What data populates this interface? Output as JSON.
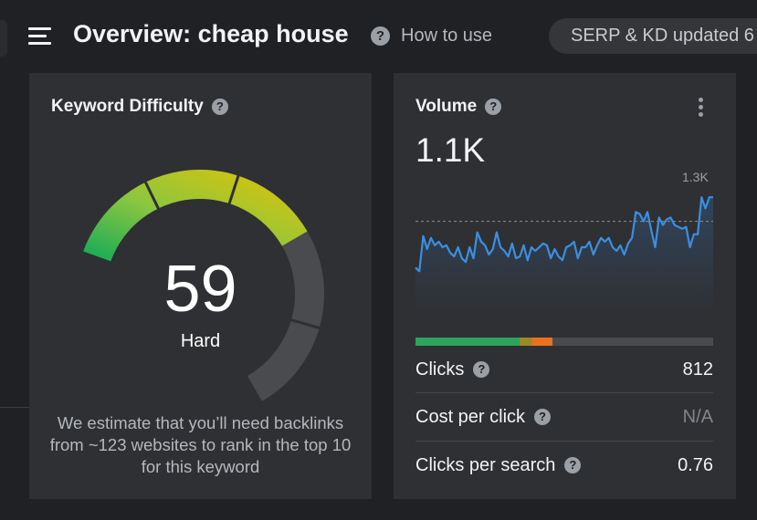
{
  "header": {
    "title": "Overview: cheap house",
    "how_to_use": "How to use",
    "serp_pill": "SERP & KD updated 6"
  },
  "keyword_difficulty": {
    "title": "Keyword Difficulty",
    "score": "59",
    "level": "Hard",
    "description": "We estimate that you’ll need backlinks from ~123 websites to rank in the top 10 for this keyword",
    "score_fraction": 0.59,
    "colors": {
      "green_dark": "#0fa958",
      "green_light": "#8cc63f",
      "yellow": "#e8c300",
      "track": "#4a4b4e"
    }
  },
  "volume": {
    "title": "Volume",
    "value": "1.1K",
    "y_max_label": "1.3K",
    "y_max_value": 1300,
    "reference_line_value": 1100,
    "trend": [
      850,
      830,
      1020,
      950,
      1010,
      970,
      990,
      960,
      970,
      930,
      910,
      960,
      900,
      880,
      960,
      900,
      1040,
      990,
      970,
      920,
      950,
      1040,
      960,
      940,
      910,
      980,
      900,
      910,
      970,
      890,
      960,
      940,
      960,
      980,
      970,
      900,
      950,
      910,
      890,
      960,
      970,
      990,
      900,
      960,
      960,
      990,
      920,
      970,
      1010,
      990,
      1010,
      960,
      940,
      970,
      920,
      980,
      1010,
      1150,
      1140,
      1100,
      1150,
      1050,
      960,
      1120,
      1080,
      1110,
      1120,
      1080,
      1070,
      1060,
      1070,
      960,
      1030,
      1030,
      1230,
      1170,
      1230,
      1230
    ],
    "colors": {
      "line": "#3b8fe0",
      "area_top": "#31445c",
      "area_bottom": "#2f3033"
    },
    "split": {
      "organic_fraction": 0.35,
      "paid_olive_fraction": 0.04,
      "paid_orange_fraction": 0.07,
      "colors": {
        "organic": "#2da45c",
        "olive": "#9b8a25",
        "orange": "#e8731c",
        "rest": "#4a4b4e"
      }
    },
    "metrics": [
      {
        "label": "Clicks",
        "value": "812",
        "has_help": true,
        "muted": false
      },
      {
        "label": "Cost per click",
        "value": "N/A",
        "has_help": true,
        "muted": true
      },
      {
        "label": "Clicks per search",
        "value": "0.76",
        "has_help": true,
        "muted": false
      }
    ]
  }
}
